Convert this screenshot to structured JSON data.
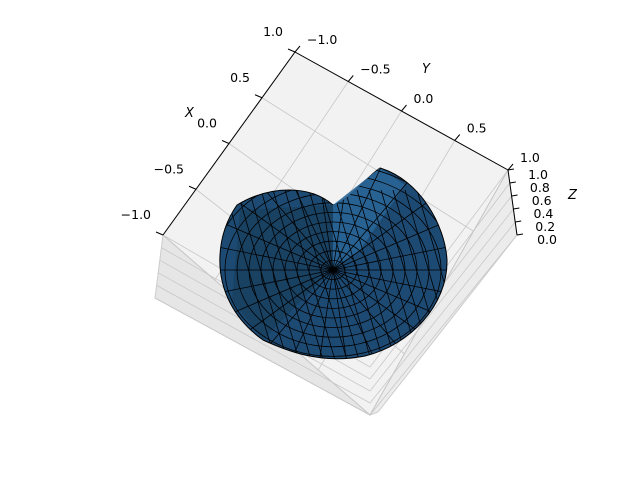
{
  "chart_data": {
    "type": "surface3d",
    "title": "",
    "axes": {
      "x": {
        "label": "X",
        "ticks": [
          "−1.0",
          "−0.5",
          "0.0",
          "0.5",
          "1.0"
        ],
        "range": [
          -1,
          1
        ]
      },
      "y": {
        "label": "Y",
        "ticks": [
          "−1.0",
          "−0.5",
          "0.0",
          "0.5",
          "1.0"
        ],
        "range": [
          -1,
          1
        ]
      },
      "z": {
        "label": "Z",
        "ticks": [
          "0.0",
          "0.2",
          "0.4",
          "0.6",
          "0.8",
          "1.0"
        ],
        "range": [
          0,
          1
        ]
      }
    },
    "surface": {
      "description": "triangulated hemisphere with one quadrant removed",
      "face_color": "#1f4e79",
      "edge_color": "#000000"
    },
    "grid": true,
    "pane_color": "#f2f2f2"
  }
}
